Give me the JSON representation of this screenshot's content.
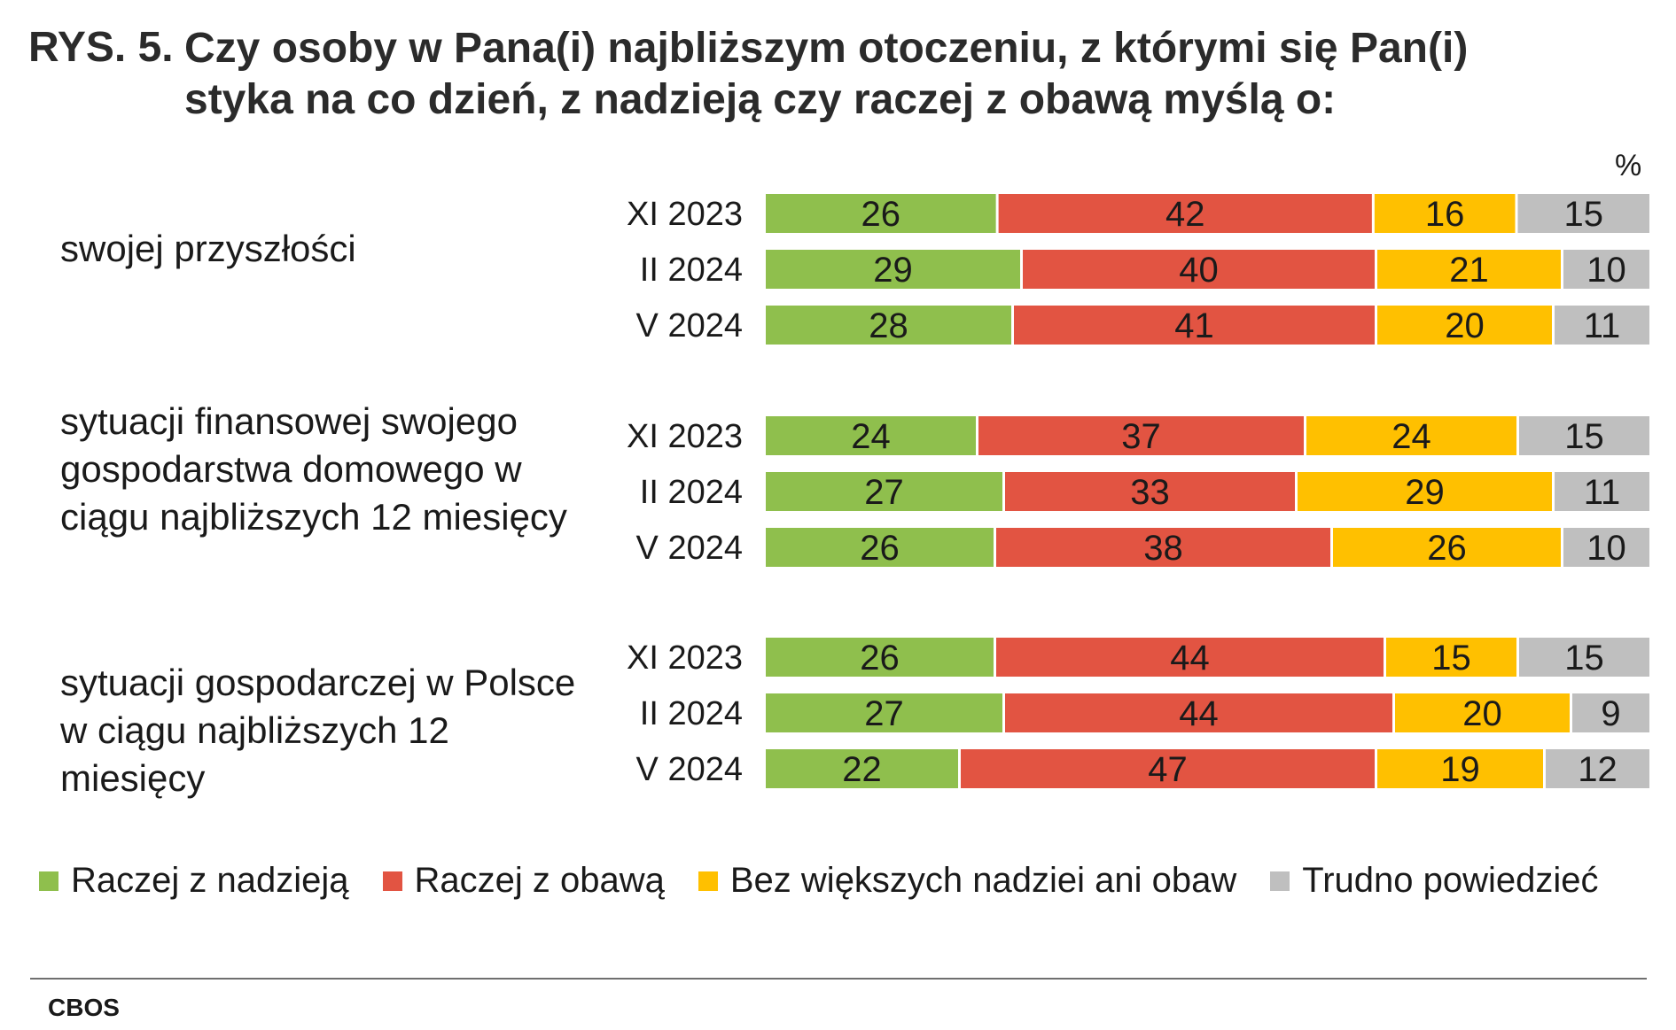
{
  "title_number": "RYS. 5.",
  "title": "Czy osoby w Pana(i) najbliższym otoczeniu, z którymi się Pan(i) styka na co dzień, z nadzieją czy raczej z obawą myślą o:",
  "unit": "%",
  "source": "CBOS",
  "chart_data": {
    "type": "bar",
    "orientation": "horizontal",
    "stacked": true,
    "percent": true,
    "xlim": [
      0,
      100
    ],
    "groups": [
      {
        "label": "swojej przyszłości",
        "rows": [
          {
            "period": "XI 2023",
            "values": [
              26,
              42,
              16,
              15
            ]
          },
          {
            "period": "II 2024",
            "values": [
              29,
              40,
              21,
              10
            ]
          },
          {
            "period": "V 2024",
            "values": [
              28,
              41,
              20,
              11
            ]
          }
        ]
      },
      {
        "label": "sytuacji finansowej swojego gospodarstwa domowego w ciągu najbliższych 12 miesięcy",
        "rows": [
          {
            "period": "XI 2023",
            "values": [
              24,
              37,
              24,
              15
            ]
          },
          {
            "period": "II 2024",
            "values": [
              27,
              33,
              29,
              11
            ]
          },
          {
            "period": "V 2024",
            "values": [
              26,
              38,
              26,
              10
            ]
          }
        ]
      },
      {
        "label": "sytuacji gospodarczej w Polsce w ciągu najbliższych 12 miesięcy",
        "rows": [
          {
            "period": "XI 2023",
            "values": [
              26,
              44,
              15,
              15
            ]
          },
          {
            "period": "II 2024",
            "values": [
              27,
              44,
              20,
              9
            ]
          },
          {
            "period": "V 2024",
            "values": [
              22,
              47,
              19,
              12
            ]
          }
        ]
      }
    ],
    "series": [
      {
        "name": "Raczej z nadzieją",
        "color": "#8fbf4d"
      },
      {
        "name": "Raczej z obawą",
        "color": "#e25442"
      },
      {
        "name": "Bez większych nadziei ani obaw",
        "color": "#ffc000"
      },
      {
        "name": "Trudno powiedzieć",
        "color": "#bfbfbf"
      }
    ],
    "legend": "bottom"
  }
}
